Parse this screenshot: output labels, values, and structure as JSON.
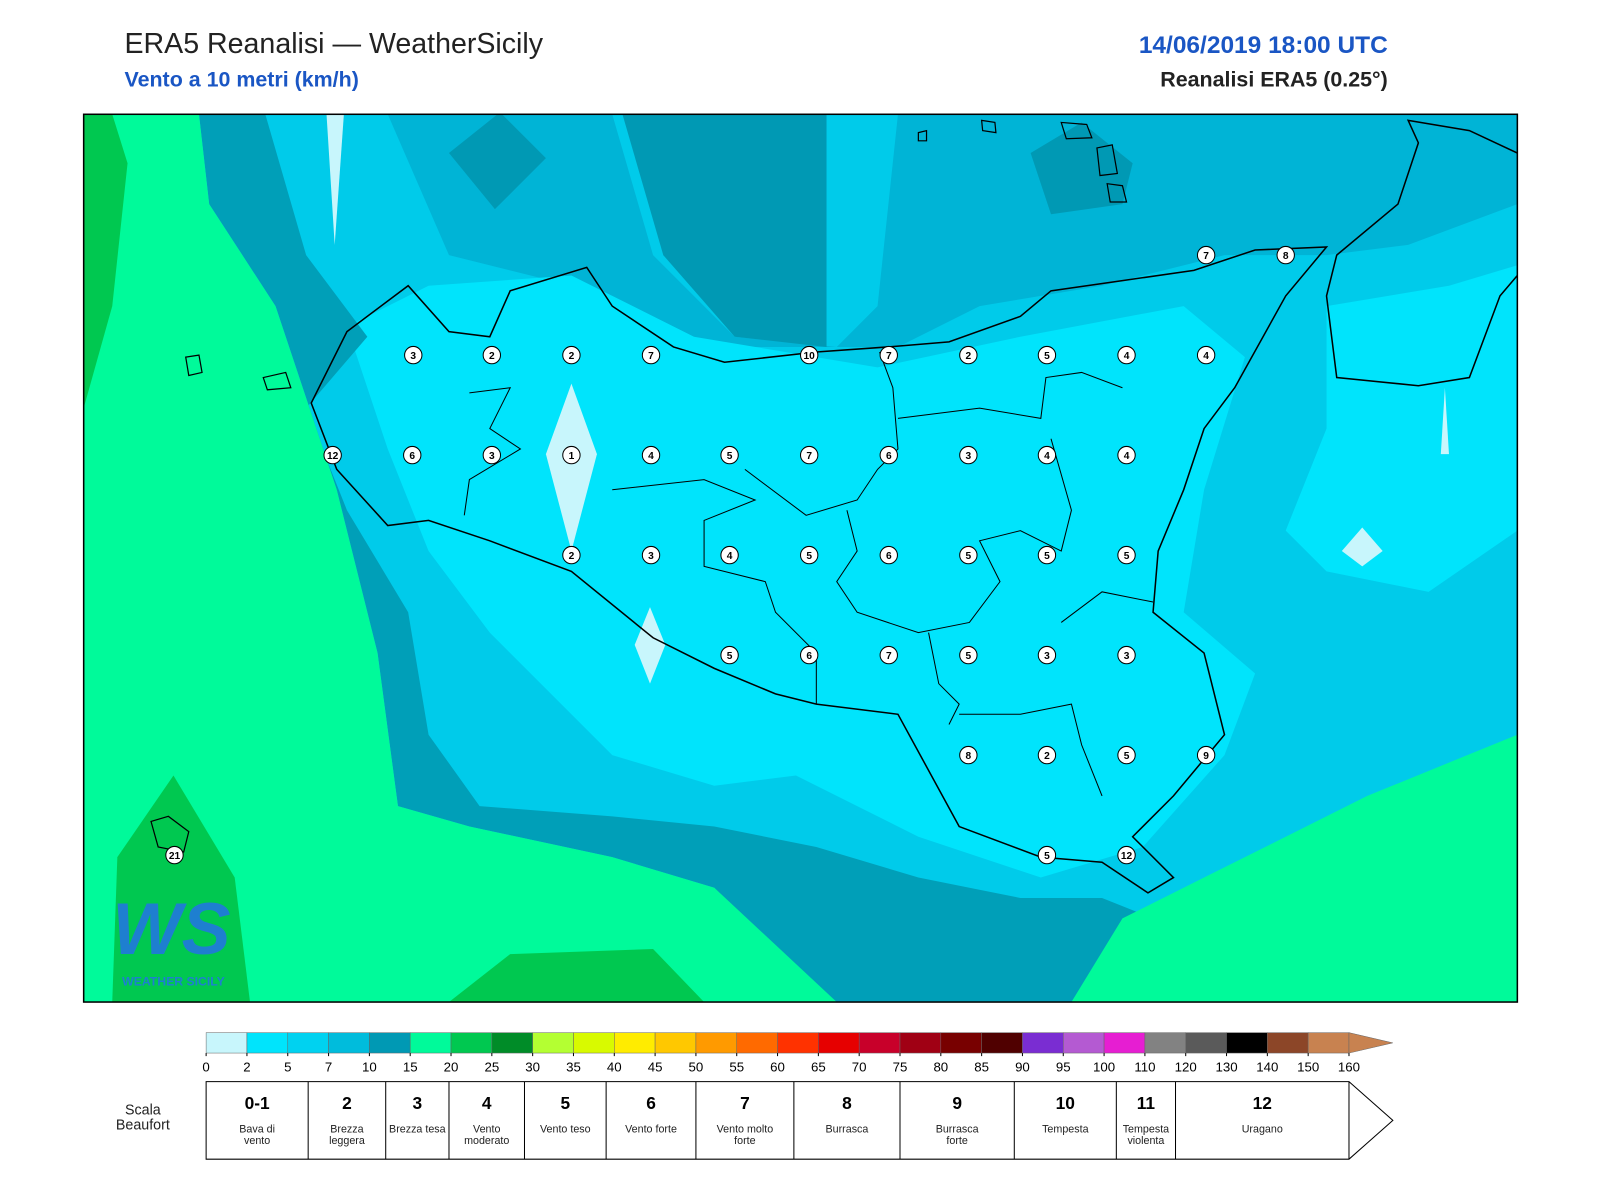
{
  "header": {
    "title": "ERA5 Reanalisi — WeatherSicily",
    "subtitle": "Vento a 10 metri (km/h)",
    "datetime": "14/06/2019 18:00 UTC",
    "source": "Reanalisi ERA5 (0.25°)"
  },
  "wind_values": [
    3,
    2,
    2,
    7,
    10,
    7,
    2,
    5,
    4,
    4,
    12,
    6,
    3,
    1,
    4,
    5,
    7,
    6,
    3,
    4,
    4,
    2,
    3,
    4,
    5,
    6,
    5,
    5,
    5,
    5,
    6,
    7,
    5,
    3,
    3,
    8,
    2,
    5,
    9,
    5,
    12,
    7,
    8,
    21
  ],
  "logo": {
    "mark": "WS",
    "text": "WEATHER SICILY"
  },
  "colorbar": {
    "ticks": [
      0,
      2,
      5,
      7,
      10,
      15,
      20,
      25,
      30,
      35,
      40,
      45,
      50,
      55,
      60,
      65,
      70,
      75,
      80,
      85,
      90,
      95,
      100,
      110,
      120,
      130,
      140,
      150,
      160
    ],
    "colors": [
      "#c8f6fc",
      "#00e4fc",
      "#00d2f0",
      "#00bcdc",
      "#0099b4",
      "#00fa9a",
      "#00c850",
      "#008c28",
      "#b4ff32",
      "#d8fa00",
      "#ffec00",
      "#ffc800",
      "#ff9a00",
      "#ff6a00",
      "#ff3200",
      "#e60000",
      "#c8002a",
      "#a00014",
      "#780000",
      "#500000",
      "#7a2dd2",
      "#b45ad2",
      "#e61ed2",
      "#828282",
      "#5a5a5a",
      "#000000",
      "#8c4628",
      "#c88250"
    ]
  },
  "beaufort": {
    "label": "Scala Beaufort",
    "levels": [
      {
        "force": "0-1",
        "name": "Bava di vento"
      },
      {
        "force": "2",
        "name": "Brezza leggera"
      },
      {
        "force": "3",
        "name": "Brezza tesa"
      },
      {
        "force": "4",
        "name": "Vento moderato"
      },
      {
        "force": "5",
        "name": "Vento teso"
      },
      {
        "force": "6",
        "name": "Vento forte"
      },
      {
        "force": "7",
        "name": "Vento molto forte"
      },
      {
        "force": "8",
        "name": "Burrasca"
      },
      {
        "force": "9",
        "name": "Burrasca forte"
      },
      {
        "force": "10",
        "name": "Tempesta"
      },
      {
        "force": "11",
        "name": "Tempesta violenta"
      },
      {
        "force": "12",
        "name": "Uragano"
      }
    ]
  }
}
